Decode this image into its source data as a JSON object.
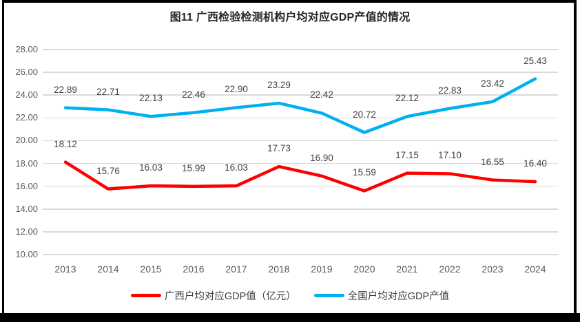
{
  "title": "图11 广西检验检测机构户均对应GDP产值的情况",
  "colors": {
    "guangxi_series": "#FF0000",
    "national_series": "#00B0F0",
    "gridline": "#D9D9D9",
    "axis_text": "#595959",
    "data_label_text": "#404040",
    "title_text": "#262626",
    "frame": "#000000"
  },
  "chart_data": {
    "type": "line",
    "title": "图11 广西检验检测机构户均对应GDP产值的情况",
    "categories": [
      "2013",
      "2014",
      "2015",
      "2016",
      "2017",
      "2018",
      "2019",
      "2020",
      "2021",
      "2022",
      "2023",
      "2024"
    ],
    "series": [
      {
        "name": "广西户均对应GDP值（亿元）",
        "color": "#FF0000",
        "values": [
          18.12,
          15.76,
          16.03,
          15.99,
          16.03,
          17.73,
          16.9,
          15.59,
          17.15,
          17.1,
          16.55,
          16.4
        ]
      },
      {
        "name": "全国户均对应GDP产值",
        "color": "#00B0F0",
        "values": [
          22.89,
          22.71,
          22.13,
          22.46,
          22.9,
          23.29,
          22.42,
          20.72,
          22.12,
          22.83,
          23.42,
          25.43
        ]
      }
    ],
    "xlabel": "",
    "ylabel": "",
    "ylim": [
      10.0,
      28.0
    ],
    "ytick_step": 2,
    "ytick_decimals": 2,
    "grid": true,
    "data_labels": true,
    "legend_position": "bottom"
  }
}
